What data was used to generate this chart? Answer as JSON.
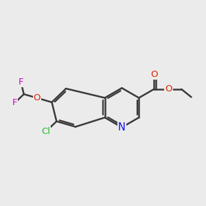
{
  "background_color": "#ebebeb",
  "bond_color": "#3a3a3a",
  "bond_width": 1.8,
  "atom_colors": {
    "N": "#1010ee",
    "O": "#dd2200",
    "Cl": "#22bb22",
    "F": "#cc00cc",
    "C": "#3a3a3a"
  },
  "font_size": 9.5,
  "fig_size": [
    3.0,
    3.0
  ],
  "dpi": 100
}
